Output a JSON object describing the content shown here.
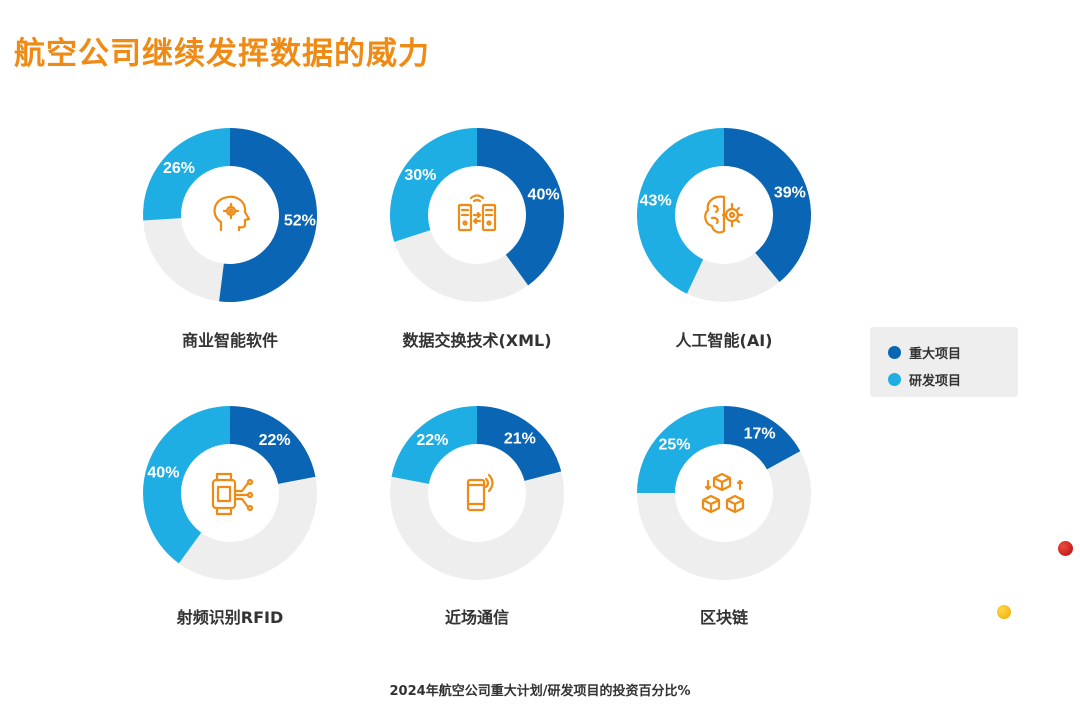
{
  "title": "航空公司继续发挥数据的威力",
  "footnote": "2024年航空公司重大计划/研发项目的投资百分比%",
  "colors": {
    "major": "#0a65b4",
    "rnd": "#1eaee4",
    "remainder": "#eeeeee",
    "icon": "#ef8a14",
    "title": "#ef8a14"
  },
  "legend": {
    "major": "重大项目",
    "rnd": "研发项目"
  },
  "chart_data": [
    {
      "type": "pie",
      "style": "donut",
      "title": "商业智能软件",
      "icon": "head-gear-icon",
      "series": [
        {
          "name": "重大项目",
          "value": 52
        },
        {
          "name": "研发项目",
          "value": 26
        }
      ]
    },
    {
      "type": "pie",
      "style": "donut",
      "title": "数据交换技术(XML)",
      "icon": "server-exchange-icon",
      "series": [
        {
          "name": "重大项目",
          "value": 40
        },
        {
          "name": "研发项目",
          "value": 30
        }
      ]
    },
    {
      "type": "pie",
      "style": "donut",
      "title": "人工智能(AI)",
      "icon": "brain-gear-icon",
      "series": [
        {
          "name": "重大项目",
          "value": 39
        },
        {
          "name": "研发项目",
          "value": 43
        }
      ]
    },
    {
      "type": "pie",
      "style": "donut",
      "title": "射频识别RFID",
      "icon": "rfid-chip-icon",
      "series": [
        {
          "name": "重大项目",
          "value": 22
        },
        {
          "name": "研发项目",
          "value": 40
        }
      ]
    },
    {
      "type": "pie",
      "style": "donut",
      "title": "近场通信",
      "icon": "nfc-phone-icon",
      "series": [
        {
          "name": "重大项目",
          "value": 21
        },
        {
          "name": "研发项目",
          "value": 22
        }
      ]
    },
    {
      "type": "pie",
      "style": "donut",
      "title": "区块链",
      "icon": "blockchain-cubes-icon",
      "series": [
        {
          "name": "重大项目",
          "value": 17
        },
        {
          "name": "研发项目",
          "value": 25
        }
      ]
    }
  ]
}
